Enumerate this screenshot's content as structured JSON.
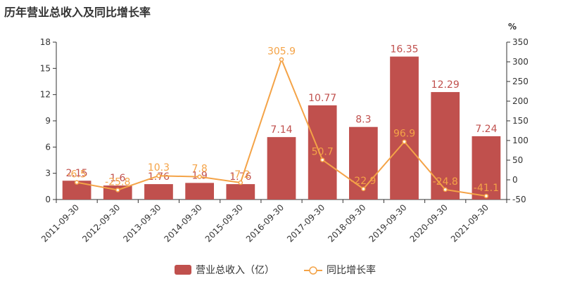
{
  "chart_data": {
    "type": "bar+line",
    "title": "历年营业总收入及同比增长率",
    "categories": [
      "2011-09-30",
      "2012-09-30",
      "2013-09-30",
      "2014-09-30",
      "2015-09-30",
      "2016-09-30",
      "2017-09-30",
      "2018-09-30",
      "2019-09-30",
      "2020-09-30",
      "2021-09-30"
    ],
    "series": [
      {
        "name": "营业总收入（亿）",
        "type": "bar",
        "axis": "left",
        "color": "#c0504d",
        "values": [
          2.15,
          1.6,
          1.76,
          1.9,
          1.76,
          7.14,
          10.77,
          8.3,
          16.35,
          12.29,
          7.24
        ],
        "labels": [
          "2.15",
          "1.6",
          "1.76",
          "1.9",
          "1.76",
          "7.14",
          "10.77",
          "8.3",
          "16.35",
          "12.29",
          "7.24"
        ]
      },
      {
        "name": "同比增长率",
        "type": "line",
        "axis": "right",
        "color": "#f4a347",
        "values": [
          -6.5,
          -25.8,
          10.3,
          7.8,
          -7.2,
          305.9,
          50.7,
          -22.9,
          96.9,
          -24.8,
          -41.1
        ],
        "labels": [
          "-6.5",
          "-25.8",
          "10.3",
          "7.8",
          "-7.2",
          "305.9",
          "50.7",
          "-22.9",
          "96.9",
          "-24.8",
          "-41.1"
        ]
      }
    ],
    "yaxis_left": {
      "min": 0,
      "max": 18,
      "ticks": [
        0,
        3,
        6,
        9,
        12,
        15,
        18
      ]
    },
    "yaxis_right": {
      "min": -50,
      "max": 350,
      "ticks": [
        -50,
        0,
        50,
        100,
        150,
        200,
        250,
        300,
        350
      ],
      "unit": "%"
    },
    "grid": false,
    "legend_position": "bottom-center"
  }
}
